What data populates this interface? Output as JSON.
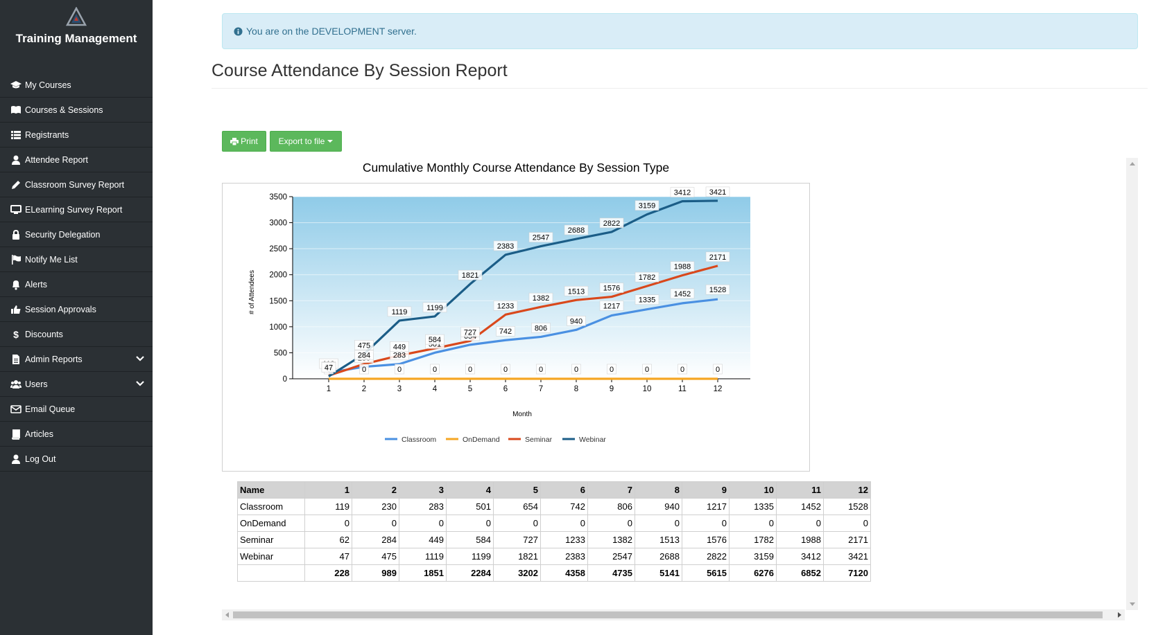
{
  "brand": {
    "title": "Training Management"
  },
  "sidebar": {
    "items": [
      {
        "label": "My Courses",
        "icon": "graduation-cap-icon"
      },
      {
        "label": "Courses & Sessions",
        "icon": "book-open-icon"
      },
      {
        "label": "Registrants",
        "icon": "table-list-icon"
      },
      {
        "label": "Attendee Report",
        "icon": "user-icon"
      },
      {
        "label": "Classroom Survey Report",
        "icon": "pencil-icon"
      },
      {
        "label": "ELearning Survey Report",
        "icon": "monitor-icon"
      },
      {
        "label": "Security Delegation",
        "icon": "lock-icon"
      },
      {
        "label": "Notify Me List",
        "icon": "flag-icon"
      },
      {
        "label": "Alerts",
        "icon": "bell-icon"
      },
      {
        "label": "Session Approvals",
        "icon": "thumbs-up-icon"
      },
      {
        "label": "Discounts",
        "icon": "dollar-icon"
      },
      {
        "label": "Admin Reports",
        "icon": "document-icon",
        "expandable": true
      },
      {
        "label": "Users",
        "icon": "users-icon",
        "expandable": true
      },
      {
        "label": "Email Queue",
        "icon": "envelope-icon"
      },
      {
        "label": "Articles",
        "icon": "book-icon"
      },
      {
        "label": "Log Out",
        "icon": "user-icon"
      }
    ]
  },
  "alert": {
    "text": "You are on the DEVELOPMENT server."
  },
  "page": {
    "title": "Course Attendance By Session Report"
  },
  "toolbar": {
    "print_label": "Print",
    "export_label": "Export to file"
  },
  "chart_data": {
    "type": "line",
    "title": "Cumulative Monthly Course Attendance By Session Type",
    "xlabel": "Month",
    "ylabel": "# of Attendees",
    "x": [
      1,
      2,
      3,
      4,
      5,
      6,
      7,
      8,
      9,
      10,
      11,
      12
    ],
    "ylim": [
      0,
      3500
    ],
    "yticks": [
      0,
      500,
      1000,
      1500,
      2000,
      2500,
      3000,
      3500
    ],
    "legend_position": "bottom",
    "series": [
      {
        "name": "Classroom",
        "color": "#4a90e2",
        "values": [
          119,
          230,
          283,
          501,
          654,
          742,
          806,
          940,
          1217,
          1335,
          1452,
          1528
        ]
      },
      {
        "name": "OnDemand",
        "color": "#f5a623",
        "values": [
          0,
          0,
          0,
          0,
          0,
          0,
          0,
          0,
          0,
          0,
          0,
          0
        ]
      },
      {
        "name": "Seminar",
        "color": "#d9481c",
        "values": [
          62,
          284,
          449,
          584,
          727,
          1233,
          1382,
          1513,
          1576,
          1782,
          1988,
          2171
        ]
      },
      {
        "name": "Webinar",
        "color": "#1b5d87",
        "values": [
          47,
          475,
          1119,
          1199,
          1821,
          2383,
          2547,
          2688,
          2822,
          3159,
          3412,
          3421
        ]
      }
    ]
  },
  "table": {
    "header_name": "Name",
    "columns": [
      "1",
      "2",
      "3",
      "4",
      "5",
      "6",
      "7",
      "8",
      "9",
      "10",
      "11",
      "12"
    ],
    "rows": [
      {
        "name": "Classroom",
        "values": [
          "119",
          "230",
          "283",
          "501",
          "654",
          "742",
          "806",
          "940",
          "1217",
          "1335",
          "1452",
          "1528"
        ]
      },
      {
        "name": "OnDemand",
        "values": [
          "0",
          "0",
          "0",
          "0",
          "0",
          "0",
          "0",
          "0",
          "0",
          "0",
          "0",
          "0"
        ]
      },
      {
        "name": "Seminar",
        "values": [
          "62",
          "284",
          "449",
          "584",
          "727",
          "1233",
          "1382",
          "1513",
          "1576",
          "1782",
          "1988",
          "2171"
        ]
      },
      {
        "name": "Webinar",
        "values": [
          "47",
          "475",
          "1119",
          "1199",
          "1821",
          "2383",
          "2547",
          "2688",
          "2822",
          "3159",
          "3412",
          "3421"
        ]
      }
    ],
    "totals": [
      "228",
      "989",
      "1851",
      "2284",
      "3202",
      "4358",
      "4735",
      "5141",
      "5615",
      "6276",
      "6852",
      "7120"
    ]
  }
}
